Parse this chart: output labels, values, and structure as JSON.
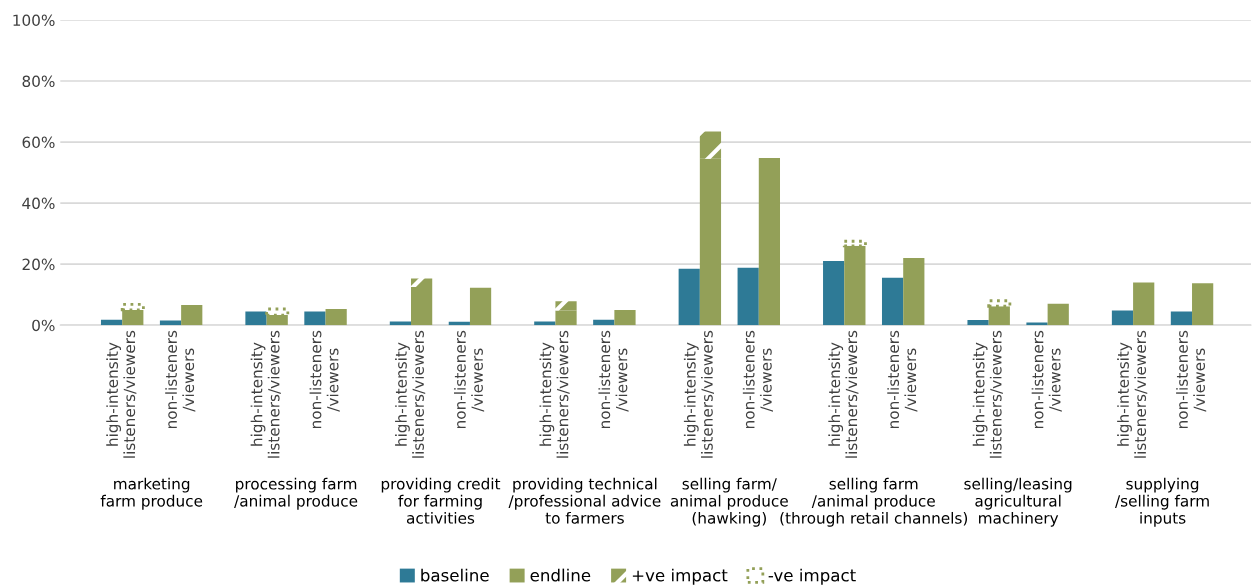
{
  "chart_data": {
    "type": "bar",
    "categories": [
      "high-intensity\nlisteners/viewers",
      "non-listeners\n/viewers",
      "high-intensity\nlisteners/viewers",
      "non-listeners\n/viewers",
      "high-intensity\nlisteners/viewers",
      "non-listeners\n/viewers",
      "high-intensity\nlisteners/viewers",
      "non-listeners\n/viewers",
      "high-intensity\nlisteners/viewers",
      "non-listeners\n/viewers",
      "high-intensity\nlisteners/viewers",
      "non-listeners\n/viewers",
      "high-intensity\nlisteners/viewers",
      "non-listeners\n/viewers",
      "high-intensity\nlisteners/viewers",
      "non-listeners\n/viewers"
    ],
    "annotations": [
      "marketing\nfarm produce",
      "processing farm\n/animal produce",
      "providing credit\nfor farming\nactivities",
      "providing technical\n/professional advice\nto farmers",
      "selling farm/\nanimal produce\n(hawking)",
      "selling farm\n/animal produce\n(through retail channels)",
      "selling/leasing\nagricultural\nmachinery",
      "supplying\n/selling farm\ninputs"
    ],
    "series": [
      {
        "name": "baseline",
        "color": "#2e7a96",
        "values": [
          1.8,
          1.5,
          4.5,
          4.5,
          1.2,
          1.1,
          1.2,
          1.8,
          18.5,
          18.8,
          21,
          15.5,
          1.7,
          0.9,
          4.8,
          4.5
        ]
      },
      {
        "name": "endline",
        "color": "#93a058",
        "values": [
          5,
          6.6,
          3.3,
          5.3,
          12.5,
          12.3,
          4.8,
          5,
          54.5,
          54.8,
          26,
          22,
          6.2,
          7,
          14,
          13.7
        ]
      },
      {
        "name": "+ve impact",
        "color": "#93a058",
        "base": [
          null,
          null,
          null,
          null,
          12.5,
          null,
          4.8,
          null,
          54.5,
          null,
          null,
          null,
          null,
          null,
          null,
          null
        ],
        "values": [
          null,
          null,
          null,
          null,
          2.8,
          null,
          3,
          null,
          9,
          null,
          null,
          null,
          null,
          null,
          null,
          null
        ]
      },
      {
        "name": "-ve impact",
        "color": "#93a058",
        "line_style": "dotted",
        "base": [
          5,
          null,
          3.3,
          null,
          null,
          null,
          null,
          null,
          null,
          null,
          26,
          null,
          6.2,
          null,
          null,
          null
        ],
        "values": [
          1.8,
          null,
          2,
          null,
          null,
          null,
          null,
          null,
          null,
          null,
          1.5,
          null,
          1.8,
          null,
          null,
          null
        ]
      }
    ],
    "ylim": [
      0,
      100
    ],
    "yticks": [
      {
        "value": 0,
        "label": "0%"
      },
      {
        "value": 20,
        "label": "20%"
      },
      {
        "value": 40,
        "label": "40%"
      },
      {
        "value": 60,
        "label": "60%"
      },
      {
        "value": 80,
        "label": "80%"
      },
      {
        "value": 100,
        "label": "100%"
      }
    ],
    "grid": "y",
    "legend": "bottom"
  }
}
